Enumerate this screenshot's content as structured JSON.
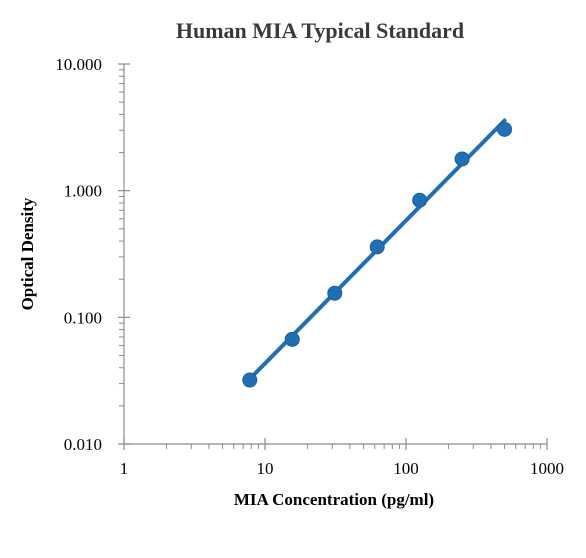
{
  "chart_data": {
    "type": "scatter",
    "title": "Human MIA Typical Standard",
    "xlabel": "MIA Concentration (pg/ml)",
    "ylabel": "Optical Density",
    "x_scale": "log",
    "y_scale": "log",
    "xlim": [
      1,
      1000
    ],
    "ylim": [
      0.01,
      10
    ],
    "x_ticks": [
      1,
      10,
      100,
      1000
    ],
    "x_tick_labels": [
      "1",
      "10",
      "100",
      "1000"
    ],
    "y_ticks": [
      0.01,
      0.1,
      1,
      10
    ],
    "y_tick_labels": [
      "0.010",
      "0.100",
      "1.000",
      "10.000"
    ],
    "grid": false,
    "legend": "none",
    "series": [
      {
        "x": [
          7.8,
          15.6,
          31.25,
          62.5,
          125,
          250,
          500
        ],
        "y": [
          0.032,
          0.067,
          0.155,
          0.36,
          0.84,
          1.78,
          3.05
        ],
        "marker": "circle",
        "color": "#1f6fb5"
      }
    ],
    "trendline": {
      "type": "power",
      "x_range": [
        7.8,
        500
      ],
      "color": "#1f6fb5"
    }
  }
}
